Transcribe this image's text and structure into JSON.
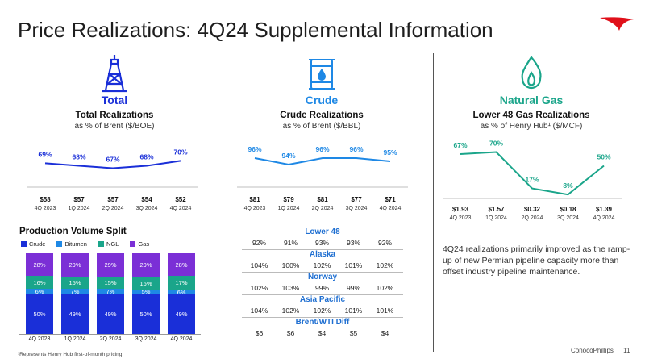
{
  "title": "Price Realizations: 4Q24 Supplemental Information",
  "colors": {
    "total": "#1a2fd8",
    "crude": "#1e88e5",
    "gas": "#1aa58a",
    "crude_bar": "#1a2fd8",
    "bitumen_bar": "#1e88e5",
    "ngl_bar": "#1aa58a",
    "gas_bar": "#7b2fd6",
    "logo": "#e0101a"
  },
  "sections": {
    "total": {
      "label": "Total",
      "icon": "oil-derrick-icon",
      "heading": "Total Realizations",
      "subheading": "as % of Brent ($/BOE)"
    },
    "crude": {
      "label": "Crude",
      "icon": "oil-barrel-icon",
      "heading": "Crude Realizations",
      "subheading": "as % of Brent ($/BBL)"
    },
    "gas": {
      "label": "Natural Gas",
      "icon": "flame-icon",
      "heading": "Lower 48 Gas Realizations",
      "subheading": "as % of Henry Hub¹ ($/MCF)"
    }
  },
  "chart_data": [
    {
      "type": "line",
      "name": "total",
      "categories": [
        "4Q 2023",
        "1Q 2024",
        "2Q 2024",
        "3Q 2024",
        "4Q 2024"
      ],
      "values": [
        69,
        68,
        67,
        68,
        70
      ],
      "value_labels": [
        "69%",
        "68%",
        "67%",
        "68%",
        "70%"
      ],
      "price_labels": [
        "$58",
        "$57",
        "$57",
        "$54",
        "$52"
      ],
      "ylim": [
        60,
        75
      ]
    },
    {
      "type": "line",
      "name": "crude",
      "categories": [
        "4Q 2023",
        "1Q 2024",
        "2Q 2024",
        "3Q 2024",
        "4Q 2024"
      ],
      "values": [
        96,
        94,
        96,
        96,
        95
      ],
      "value_labels": [
        "96%",
        "94%",
        "96%",
        "96%",
        "95%"
      ],
      "price_labels": [
        "$81",
        "$79",
        "$81",
        "$77",
        "$71"
      ],
      "ylim": [
        85,
        100
      ]
    },
    {
      "type": "line",
      "name": "gas",
      "categories": [
        "4Q 2023",
        "1Q 2024",
        "2Q 2024",
        "3Q 2024",
        "4Q 2024"
      ],
      "values": [
        67,
        70,
        17,
        8,
        50
      ],
      "value_labels": [
        "67%",
        "70%",
        "17%",
        "8%",
        "50%"
      ],
      "price_labels": [
        "$1.93",
        "$1.57",
        "$0.32",
        "$0.18",
        "$1.39"
      ],
      "ylim": [
        0,
        80
      ]
    },
    {
      "type": "bar",
      "name": "production",
      "title": "Production Volume Split",
      "categories": [
        "4Q 2023",
        "1Q 2024",
        "2Q 2024",
        "3Q 2024",
        "4Q 2024"
      ],
      "series": [
        {
          "name": "Crude",
          "values": [
            50,
            49,
            49,
            50,
            49
          ],
          "labels": [
            "50%",
            "49%",
            "49%",
            "50%",
            "49%"
          ]
        },
        {
          "name": "Bitumen",
          "values": [
            6,
            7,
            7,
            5,
            6
          ],
          "labels": [
            "6%",
            "7%",
            "7%",
            "5%",
            "6%"
          ]
        },
        {
          "name": "NGL",
          "values": [
            16,
            15,
            15,
            16,
            17
          ],
          "labels": [
            "16%",
            "15%",
            "15%",
            "16%",
            "17%"
          ]
        },
        {
          "name": "Gas",
          "values": [
            28,
            29,
            29,
            29,
            28
          ],
          "labels": [
            "28%",
            "29%",
            "29%",
            "29%",
            "28%"
          ]
        }
      ]
    }
  ],
  "crude_table": [
    {
      "region": "Lower 48",
      "values": [
        "92%",
        "91%",
        "93%",
        "93%",
        "92%"
      ]
    },
    {
      "region": "Alaska",
      "values": [
        "104%",
        "100%",
        "102%",
        "101%",
        "102%"
      ]
    },
    {
      "region": "Norway",
      "values": [
        "102%",
        "103%",
        "99%",
        "99%",
        "102%"
      ]
    },
    {
      "region": "Asia Pacific",
      "values": [
        "104%",
        "102%",
        "102%",
        "101%",
        "101%"
      ]
    },
    {
      "region": "Brent/WTI Diff",
      "values": [
        "$6",
        "$6",
        "$4",
        "$5",
        "$4"
      ]
    }
  ],
  "note": "4Q24 realizations primarily improved as the ramp-up of new Permian pipeline capacity more than offset industry pipeline maintenance.",
  "footnote": "¹Represents Henry Hub first-of-month pricing.",
  "brand": "ConocoPhillips",
  "page_number": "11"
}
